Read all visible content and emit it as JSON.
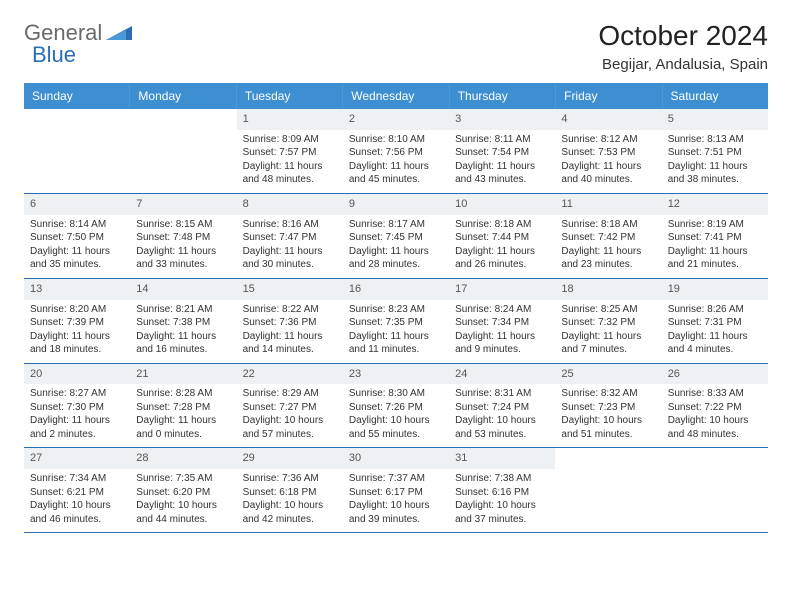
{
  "logo": {
    "general": "General",
    "blue": "Blue"
  },
  "title": "October 2024",
  "location": "Begijar, Andalusia, Spain",
  "colors": {
    "header_bg": "#3d8fd1",
    "header_text": "#ffffff",
    "daynum_bg": "#eef1f4",
    "border": "#2a6fb5",
    "logo_gray": "#6a6a6a",
    "logo_blue": "#2a6fb5"
  },
  "day_names": [
    "Sunday",
    "Monday",
    "Tuesday",
    "Wednesday",
    "Thursday",
    "Friday",
    "Saturday"
  ],
  "weeks": [
    [
      {
        "n": "",
        "lines": []
      },
      {
        "n": "",
        "lines": []
      },
      {
        "n": "1",
        "lines": [
          "Sunrise: 8:09 AM",
          "Sunset: 7:57 PM",
          "Daylight: 11 hours",
          "and 48 minutes."
        ]
      },
      {
        "n": "2",
        "lines": [
          "Sunrise: 8:10 AM",
          "Sunset: 7:56 PM",
          "Daylight: 11 hours",
          "and 45 minutes."
        ]
      },
      {
        "n": "3",
        "lines": [
          "Sunrise: 8:11 AM",
          "Sunset: 7:54 PM",
          "Daylight: 11 hours",
          "and 43 minutes."
        ]
      },
      {
        "n": "4",
        "lines": [
          "Sunrise: 8:12 AM",
          "Sunset: 7:53 PM",
          "Daylight: 11 hours",
          "and 40 minutes."
        ]
      },
      {
        "n": "5",
        "lines": [
          "Sunrise: 8:13 AM",
          "Sunset: 7:51 PM",
          "Daylight: 11 hours",
          "and 38 minutes."
        ]
      }
    ],
    [
      {
        "n": "6",
        "lines": [
          "Sunrise: 8:14 AM",
          "Sunset: 7:50 PM",
          "Daylight: 11 hours",
          "and 35 minutes."
        ]
      },
      {
        "n": "7",
        "lines": [
          "Sunrise: 8:15 AM",
          "Sunset: 7:48 PM",
          "Daylight: 11 hours",
          "and 33 minutes."
        ]
      },
      {
        "n": "8",
        "lines": [
          "Sunrise: 8:16 AM",
          "Sunset: 7:47 PM",
          "Daylight: 11 hours",
          "and 30 minutes."
        ]
      },
      {
        "n": "9",
        "lines": [
          "Sunrise: 8:17 AM",
          "Sunset: 7:45 PM",
          "Daylight: 11 hours",
          "and 28 minutes."
        ]
      },
      {
        "n": "10",
        "lines": [
          "Sunrise: 8:18 AM",
          "Sunset: 7:44 PM",
          "Daylight: 11 hours",
          "and 26 minutes."
        ]
      },
      {
        "n": "11",
        "lines": [
          "Sunrise: 8:18 AM",
          "Sunset: 7:42 PM",
          "Daylight: 11 hours",
          "and 23 minutes."
        ]
      },
      {
        "n": "12",
        "lines": [
          "Sunrise: 8:19 AM",
          "Sunset: 7:41 PM",
          "Daylight: 11 hours",
          "and 21 minutes."
        ]
      }
    ],
    [
      {
        "n": "13",
        "lines": [
          "Sunrise: 8:20 AM",
          "Sunset: 7:39 PM",
          "Daylight: 11 hours",
          "and 18 minutes."
        ]
      },
      {
        "n": "14",
        "lines": [
          "Sunrise: 8:21 AM",
          "Sunset: 7:38 PM",
          "Daylight: 11 hours",
          "and 16 minutes."
        ]
      },
      {
        "n": "15",
        "lines": [
          "Sunrise: 8:22 AM",
          "Sunset: 7:36 PM",
          "Daylight: 11 hours",
          "and 14 minutes."
        ]
      },
      {
        "n": "16",
        "lines": [
          "Sunrise: 8:23 AM",
          "Sunset: 7:35 PM",
          "Daylight: 11 hours",
          "and 11 minutes."
        ]
      },
      {
        "n": "17",
        "lines": [
          "Sunrise: 8:24 AM",
          "Sunset: 7:34 PM",
          "Daylight: 11 hours",
          "and 9 minutes."
        ]
      },
      {
        "n": "18",
        "lines": [
          "Sunrise: 8:25 AM",
          "Sunset: 7:32 PM",
          "Daylight: 11 hours",
          "and 7 minutes."
        ]
      },
      {
        "n": "19",
        "lines": [
          "Sunrise: 8:26 AM",
          "Sunset: 7:31 PM",
          "Daylight: 11 hours",
          "and 4 minutes."
        ]
      }
    ],
    [
      {
        "n": "20",
        "lines": [
          "Sunrise: 8:27 AM",
          "Sunset: 7:30 PM",
          "Daylight: 11 hours",
          "and 2 minutes."
        ]
      },
      {
        "n": "21",
        "lines": [
          "Sunrise: 8:28 AM",
          "Sunset: 7:28 PM",
          "Daylight: 11 hours",
          "and 0 minutes."
        ]
      },
      {
        "n": "22",
        "lines": [
          "Sunrise: 8:29 AM",
          "Sunset: 7:27 PM",
          "Daylight: 10 hours",
          "and 57 minutes."
        ]
      },
      {
        "n": "23",
        "lines": [
          "Sunrise: 8:30 AM",
          "Sunset: 7:26 PM",
          "Daylight: 10 hours",
          "and 55 minutes."
        ]
      },
      {
        "n": "24",
        "lines": [
          "Sunrise: 8:31 AM",
          "Sunset: 7:24 PM",
          "Daylight: 10 hours",
          "and 53 minutes."
        ]
      },
      {
        "n": "25",
        "lines": [
          "Sunrise: 8:32 AM",
          "Sunset: 7:23 PM",
          "Daylight: 10 hours",
          "and 51 minutes."
        ]
      },
      {
        "n": "26",
        "lines": [
          "Sunrise: 8:33 AM",
          "Sunset: 7:22 PM",
          "Daylight: 10 hours",
          "and 48 minutes."
        ]
      }
    ],
    [
      {
        "n": "27",
        "lines": [
          "Sunrise: 7:34 AM",
          "Sunset: 6:21 PM",
          "Daylight: 10 hours",
          "and 46 minutes."
        ]
      },
      {
        "n": "28",
        "lines": [
          "Sunrise: 7:35 AM",
          "Sunset: 6:20 PM",
          "Daylight: 10 hours",
          "and 44 minutes."
        ]
      },
      {
        "n": "29",
        "lines": [
          "Sunrise: 7:36 AM",
          "Sunset: 6:18 PM",
          "Daylight: 10 hours",
          "and 42 minutes."
        ]
      },
      {
        "n": "30",
        "lines": [
          "Sunrise: 7:37 AM",
          "Sunset: 6:17 PM",
          "Daylight: 10 hours",
          "and 39 minutes."
        ]
      },
      {
        "n": "31",
        "lines": [
          "Sunrise: 7:38 AM",
          "Sunset: 6:16 PM",
          "Daylight: 10 hours",
          "and 37 minutes."
        ]
      },
      {
        "n": "",
        "lines": []
      },
      {
        "n": "",
        "lines": []
      }
    ]
  ]
}
